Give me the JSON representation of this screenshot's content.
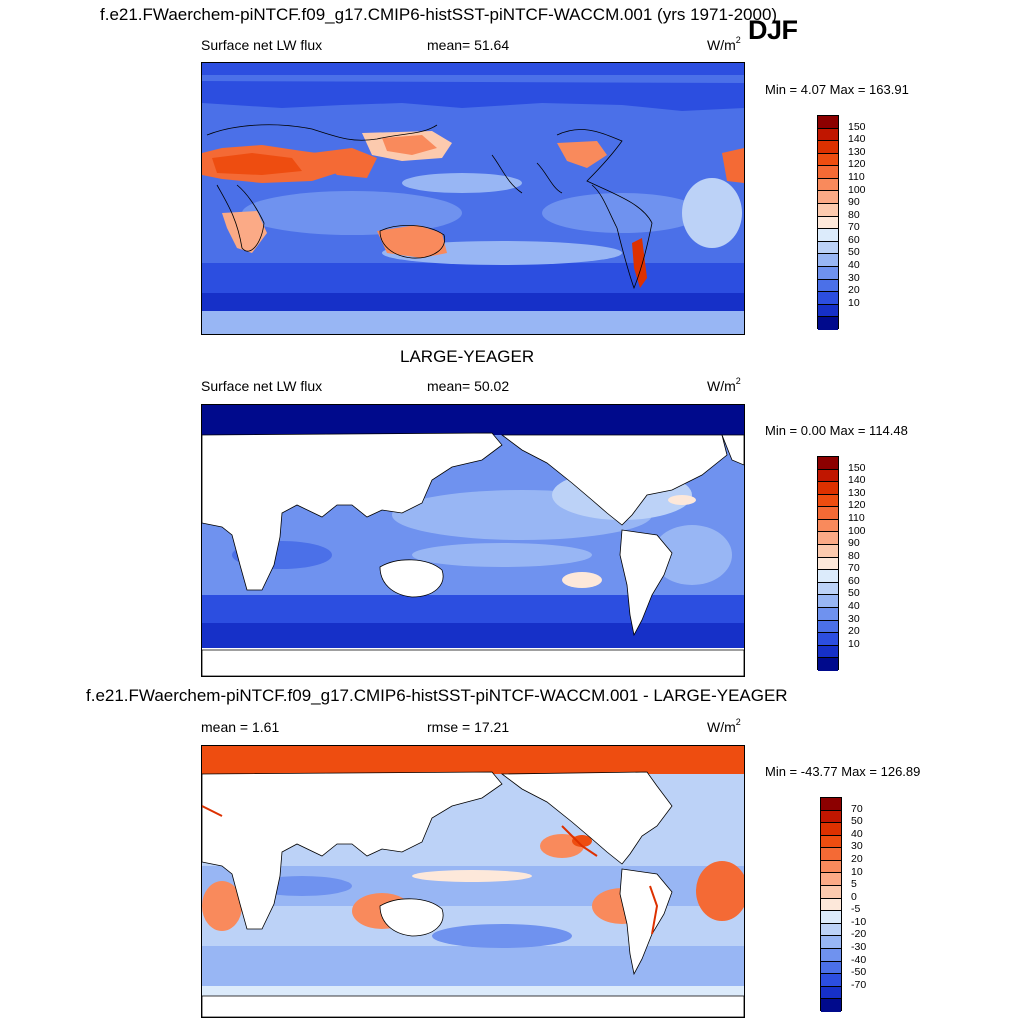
{
  "suptitle": "f.e21.FWaerchem-piNTCF.f09_g17.CMIP6-histSST-piNTCF-WACCM.001 (yrs 1971-2000)",
  "season": "DJF",
  "panels": [
    {
      "title": "",
      "variable": "Surface net LW flux",
      "stat": "mean=  51.64",
      "units": "W/m",
      "units_exp": "2",
      "minmax": "Min =   4.07 Max = 163.91",
      "legend_labels": [
        "150",
        "140",
        "130",
        "120",
        "110",
        "100",
        "90",
        "80",
        "70",
        "60",
        "50",
        "40",
        "30",
        "20",
        "10"
      ],
      "legend_colors": [
        "#8c0000",
        "#c01600",
        "#dd3100",
        "#ee4d10",
        "#f46a35",
        "#f98a5c",
        "#fbaa86",
        "#fccaae",
        "#fde8da",
        "#dcebfb",
        "#bcd2f7",
        "#98b6f4",
        "#6f92ef",
        "#4b70e8",
        "#2c4ee0",
        "#1630c8",
        "#000a8c"
      ],
      "map_note": "Surface net LW flux DJF model climatology"
    },
    {
      "title": "LARGE-YEAGER",
      "variable": "Surface net LW flux",
      "stat": "mean=  50.02",
      "units": "W/m",
      "units_exp": "2",
      "minmax": "Min =   0.00 Max = 114.48",
      "legend_labels": [
        "150",
        "140",
        "130",
        "120",
        "110",
        "100",
        "90",
        "80",
        "70",
        "60",
        "50",
        "40",
        "30",
        "20",
        "10"
      ],
      "legend_colors": [
        "#8c0000",
        "#c01600",
        "#dd3100",
        "#ee4d10",
        "#f46a35",
        "#f98a5c",
        "#fbaa86",
        "#fccaae",
        "#fde8da",
        "#dcebfb",
        "#bcd2f7",
        "#98b6f4",
        "#6f92ef",
        "#4b70e8",
        "#2c4ee0",
        "#1630c8",
        "#000a8c"
      ]
    },
    {
      "title": "f.e21.FWaerchem-piNTCF.f09_g17.CMIP6-histSST-piNTCF-WACCM.001 - LARGE-YEAGER",
      "variable": "mean =   1.61",
      "stat": "rmse =  17.21",
      "units": "W/m",
      "units_exp": "2",
      "minmax": "Min = -43.77 Max = 126.89",
      "legend_labels": [
        "70",
        "50",
        "40",
        "30",
        "20",
        "10",
        "5",
        "0",
        "-5",
        "-10",
        "-20",
        "-30",
        "-40",
        "-50",
        "-70"
      ],
      "legend_colors": [
        "#8c0000",
        "#c01600",
        "#dd3100",
        "#ee4d10",
        "#f46a35",
        "#f98a5c",
        "#fbaa86",
        "#fccaae",
        "#fde8da",
        "#dcebfb",
        "#bcd2f7",
        "#98b6f4",
        "#6f92ef",
        "#4b70e8",
        "#2c4ee0",
        "#1630c8",
        "#000a8c"
      ]
    }
  ]
}
